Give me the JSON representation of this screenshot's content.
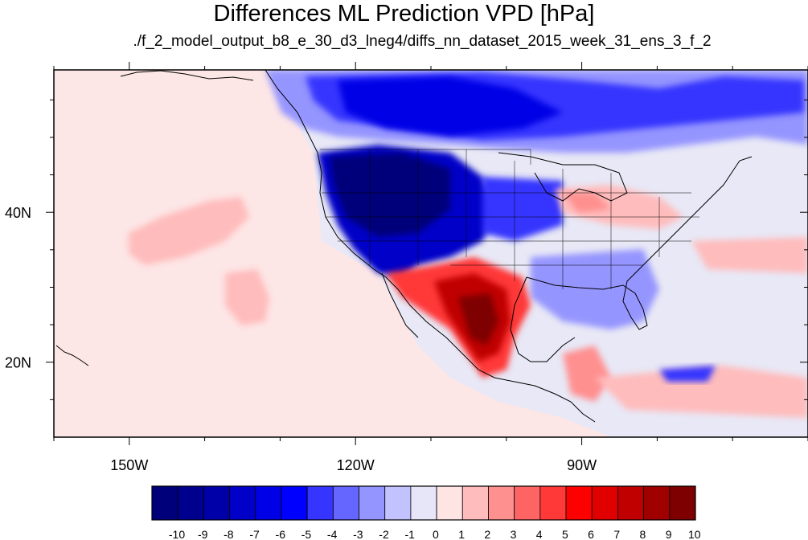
{
  "title": "Differences ML Prediction VPD [hPa]",
  "subtitle": "./f_2_model_output_b8_e_30_d3_lneg4/diffs_nn_dataset_2015_week_31_ens_3_f_2",
  "map": {
    "lon_range": [
      -160,
      -60
    ],
    "lat_range": [
      10,
      59
    ],
    "lon_ticks": [
      {
        "value": -150,
        "label": "150W"
      },
      {
        "value": -120,
        "label": "120W"
      },
      {
        "value": -90,
        "label": "90W"
      }
    ],
    "lat_ticks": [
      {
        "value": 40,
        "label": "40N"
      },
      {
        "value": 20,
        "label": "20N"
      }
    ]
  },
  "colorbar": {
    "labels": [
      "-10",
      "-9",
      "-8",
      "-7",
      "-6",
      "-5",
      "-4",
      "-3",
      "-2",
      "-1",
      "0",
      "1",
      "2",
      "3",
      "4",
      "5",
      "6",
      "7",
      "8",
      "9",
      "10"
    ],
    "colors": [
      "#00007a",
      "#00008f",
      "#0000a8",
      "#0000c8",
      "#0000e6",
      "#0000ff",
      "#3535ff",
      "#6565ff",
      "#9595ff",
      "#c2c2ff",
      "#e6e6f8",
      "#ffe4e4",
      "#ffbcbc",
      "#ff9090",
      "#ff6464",
      "#ff3838",
      "#ff0000",
      "#e00000",
      "#c00000",
      "#a00000",
      "#7e0000"
    ]
  },
  "regions": [
    {
      "name": "western-us-negative",
      "level": -9
    },
    {
      "name": "canada-negative",
      "level": -5
    },
    {
      "name": "mexico-positive",
      "level": 7
    },
    {
      "name": "ohio-valley-positive",
      "level": 2
    },
    {
      "name": "pacific-positive",
      "level": 2
    }
  ]
}
